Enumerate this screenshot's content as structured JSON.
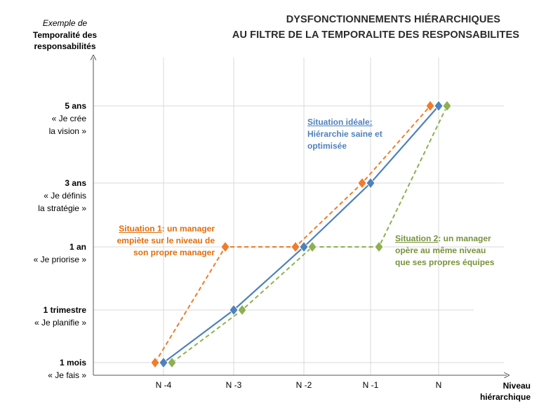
{
  "header": {
    "title_line1": "DYSFONCTIONNEMENTS HIÉRARCHIQUES",
    "title_line2": "AU FILTRE DE LA TEMPORALITE DES RESPONSABILITES"
  },
  "y_axis": {
    "supertitle": "Exemple de",
    "title_line1": "Temporalité des",
    "title_line2": "responsabilités"
  },
  "x_axis": {
    "title_line1": "Niveau",
    "title_line2": "hiérarchique"
  },
  "annotations": {
    "ideal_head": "Situation idéale:",
    "ideal_line1": "Hiérarchie saine et",
    "ideal_line2": "optimisée",
    "s1_head": "Situation 1",
    "s1_rest": ": un manager",
    "s1_line2": "empiète sur le niveau de",
    "s1_line3": "son propre manager",
    "s2_head": "Situation 2",
    "s2_rest": ": un manager",
    "s2_line2": "opère au même niveau",
    "s2_line3": "que ses propres équipes"
  },
  "colors": {
    "ideal": "#4f81bd",
    "situation1": "#f07b2a",
    "situation2": "#8db052"
  },
  "chart_data": {
    "type": "line",
    "categories": [
      "N -4",
      "N -3",
      "N -2",
      "N -1",
      "N"
    ],
    "y_levels": [
      {
        "bold": "1 mois",
        "text": "« Je fais »"
      },
      {
        "bold": "1 trimestre",
        "text": "« Je planifie »"
      },
      {
        "bold": "1 an",
        "text": "« Je priorise »"
      },
      {
        "bold": "3 ans",
        "text": "« Je définis",
        "text2": "la stratégie »"
      },
      {
        "bold": "5 ans",
        "text": "« Je crée",
        "text2": "la vision »"
      }
    ],
    "series": [
      {
        "key": "ideal",
        "name": "Situation idéale",
        "values": [
          0,
          1,
          2,
          3,
          4
        ],
        "style": "solid"
      },
      {
        "key": "situation1",
        "name": "Situation 1",
        "values": [
          0,
          2,
          2,
          3,
          4
        ],
        "style": "dashed"
      },
      {
        "key": "situation2",
        "name": "Situation 2",
        "values": [
          0,
          1,
          2,
          2,
          4
        ],
        "style": "dashed"
      }
    ],
    "grid": true
  }
}
